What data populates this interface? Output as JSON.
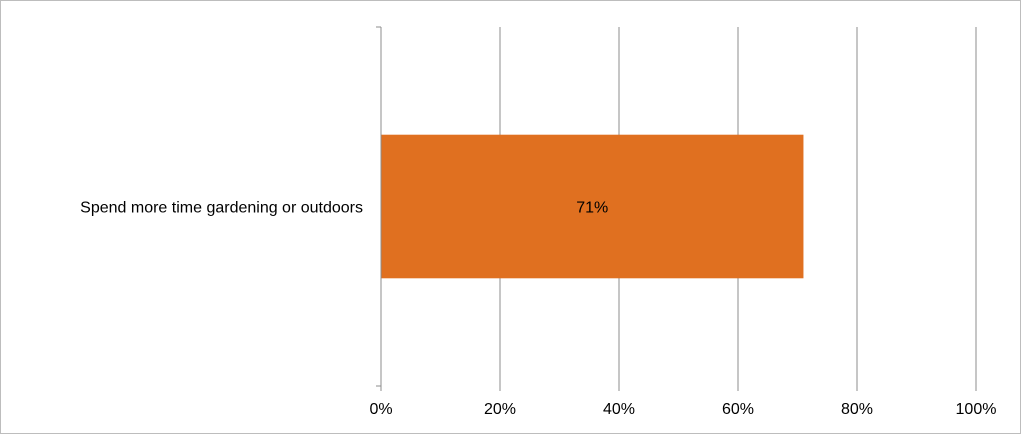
{
  "chart_data": {
    "type": "bar",
    "orientation": "horizontal",
    "categories": [
      "Spend more time gardening or outdoors"
    ],
    "values": [
      71
    ],
    "data_labels": [
      "71%"
    ],
    "xlim": [
      0,
      100
    ],
    "x_ticks": [
      0,
      20,
      40,
      60,
      80,
      100
    ],
    "x_tick_labels": [
      "0%",
      "20%",
      "40%",
      "60%",
      "80%",
      "100%"
    ],
    "grid": "vertical",
    "legend": "none",
    "bar_color": "#E07020",
    "gridline_color": "#8c8c8c"
  }
}
